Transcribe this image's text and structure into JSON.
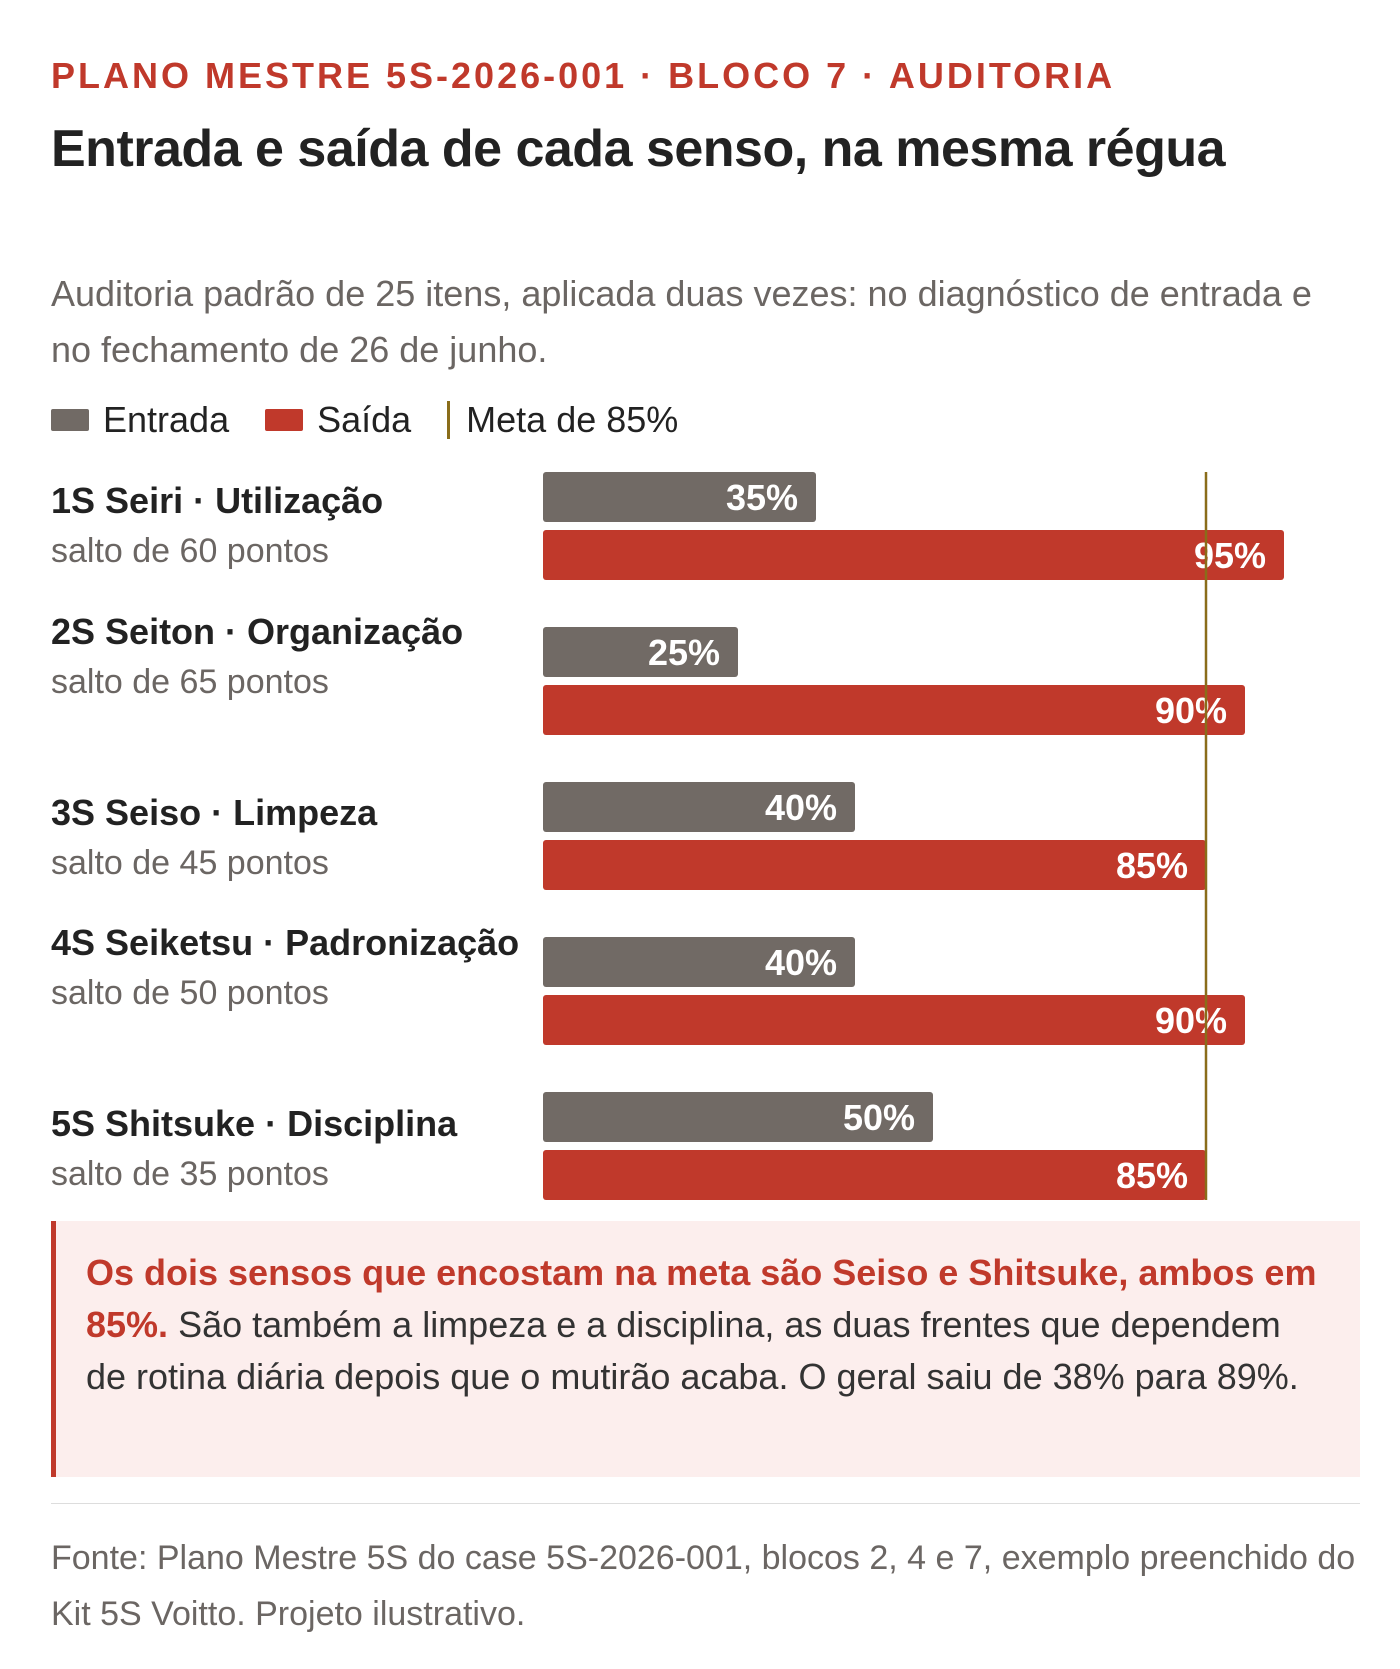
{
  "kicker": "PLANO MESTRE 5S-2026-001 · BLOCO 7 · AUDITORIA",
  "title": "Entrada e saída de cada senso, na mesma régua",
  "subtitle": "Auditoria padrão de 25 itens, aplicada duas vezes: no diagnóstico de entrada e no fechamento de 26 de junho.",
  "legend": {
    "entrada": "Entrada",
    "saida": "Saída",
    "meta": "Meta de 85%"
  },
  "colors": {
    "entrada": "#716a65",
    "saida": "#c0392b",
    "meta": "#8a6d1a",
    "accent": "#c0392b"
  },
  "chart_data": {
    "type": "bar",
    "orientation": "horizontal",
    "categories": [
      "1S Seiri · Utilização",
      "2S Seiton · Organização",
      "3S Seiso · Limpeza",
      "4S Seiketsu · Padronização",
      "5S Shitsuke · Disciplina"
    ],
    "subtitles": [
      "salto de 60 pontos",
      "salto de 65 pontos",
      "salto de 45 pontos",
      "salto de 50 pontos",
      "salto de 35 pontos"
    ],
    "series": [
      {
        "name": "Entrada",
        "values": [
          35,
          25,
          40,
          40,
          50
        ],
        "labels": [
          "35%",
          "25%",
          "40%",
          "40%",
          "50%"
        ]
      },
      {
        "name": "Saída",
        "values": [
          95,
          90,
          85,
          90,
          85
        ],
        "labels": [
          "95%",
          "90%",
          "85%",
          "90%",
          "85%"
        ]
      }
    ],
    "reference_line": {
      "name": "Meta de 85%",
      "value": 85
    },
    "xlim": [
      0,
      100
    ],
    "grid": false,
    "legend_position": "top-left"
  },
  "callout": {
    "highlight": "Os dois sensos que encostam na meta são Seiso e Shitsuke, ambos em 85%.",
    "text": " São também a limpeza e a disciplina, as duas frentes que dependem de rotina diária depois que o mutirão acaba. O geral saiu de 38% para 89%."
  },
  "source": "Fonte: Plano Mestre 5S do case 5S-2026-001, blocos 2, 4 e 7, exemplo preenchido do Kit 5S Voitto. Projeto ilustrativo."
}
